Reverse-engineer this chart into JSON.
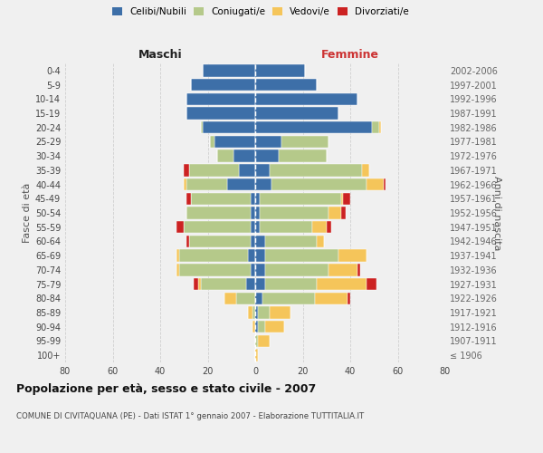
{
  "age_groups": [
    "100+",
    "95-99",
    "90-94",
    "85-89",
    "80-84",
    "75-79",
    "70-74",
    "65-69",
    "60-64",
    "55-59",
    "50-54",
    "45-49",
    "40-44",
    "35-39",
    "30-34",
    "25-29",
    "20-24",
    "15-19",
    "10-14",
    "5-9",
    "0-4"
  ],
  "birth_years": [
    "≤ 1906",
    "1907-1911",
    "1912-1916",
    "1917-1921",
    "1922-1926",
    "1927-1931",
    "1932-1936",
    "1937-1941",
    "1942-1946",
    "1947-1951",
    "1952-1956",
    "1957-1961",
    "1962-1966",
    "1967-1971",
    "1972-1976",
    "1977-1981",
    "1982-1986",
    "1987-1991",
    "1992-1996",
    "1997-2001",
    "2002-2006"
  ],
  "maschi": {
    "celibe": [
      0,
      0,
      0,
      0,
      0,
      4,
      2,
      3,
      2,
      2,
      2,
      2,
      12,
      7,
      9,
      17,
      22,
      29,
      29,
      27,
      22
    ],
    "coniugato": [
      0,
      0,
      0,
      1,
      8,
      19,
      30,
      29,
      26,
      28,
      27,
      25,
      17,
      21,
      7,
      2,
      1,
      0,
      0,
      0,
      0
    ],
    "vedovo": [
      0,
      0,
      1,
      2,
      5,
      1,
      1,
      1,
      0,
      0,
      0,
      0,
      1,
      0,
      0,
      0,
      0,
      0,
      0,
      0,
      0
    ],
    "divorziato": [
      0,
      0,
      0,
      0,
      0,
      2,
      0,
      0,
      1,
      3,
      0,
      2,
      0,
      2,
      0,
      0,
      0,
      0,
      0,
      0,
      0
    ]
  },
  "femmine": {
    "nubile": [
      0,
      0,
      1,
      1,
      3,
      4,
      4,
      4,
      4,
      2,
      2,
      2,
      7,
      6,
      10,
      11,
      49,
      35,
      43,
      26,
      21
    ],
    "coniugata": [
      0,
      1,
      3,
      5,
      22,
      22,
      27,
      31,
      22,
      22,
      29,
      34,
      40,
      39,
      20,
      20,
      3,
      0,
      0,
      0,
      0
    ],
    "vedova": [
      1,
      5,
      8,
      9,
      14,
      21,
      12,
      12,
      3,
      6,
      5,
      1,
      7,
      3,
      0,
      0,
      1,
      0,
      0,
      0,
      0
    ],
    "divorziata": [
      0,
      0,
      0,
      0,
      1,
      4,
      1,
      0,
      0,
      2,
      2,
      3,
      1,
      0,
      0,
      0,
      0,
      0,
      0,
      0,
      0
    ]
  },
  "colors": {
    "celibe": "#3d6fa8",
    "coniugato": "#b5c98a",
    "vedovo": "#f5c55a",
    "divorziato": "#cc2222"
  },
  "xlim": 80,
  "title": "Popolazione per età, sesso e stato civile - 2007",
  "subtitle": "COMUNE DI CIVITAQUANA (PE) - Dati ISTAT 1° gennaio 2007 - Elaborazione TUTTITALIA.IT",
  "ylabel_left": "Fasce di età",
  "ylabel_right": "Anni di nascita",
  "xlabel_left": "Maschi",
  "xlabel_right": "Femmine",
  "legend_labels": [
    "Celibi/Nubili",
    "Coniugati/e",
    "Vedovi/e",
    "Divorziati/e"
  ],
  "bg_color": "#f0f0f0"
}
